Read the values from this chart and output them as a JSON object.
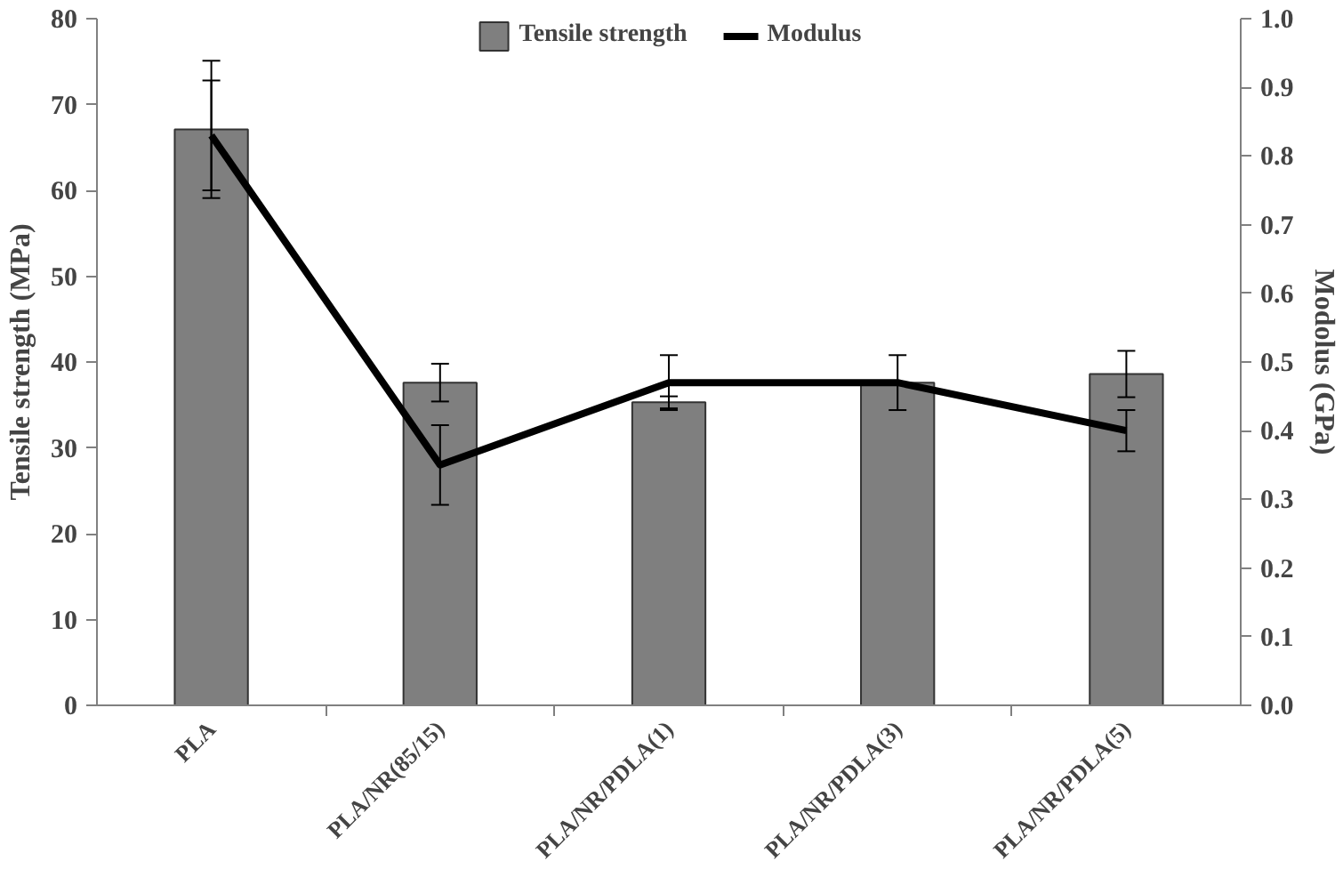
{
  "chart_data": {
    "type": "bar",
    "categories": [
      "PLA",
      "PLA/NR(85/15)",
      "PLA/NR/PDLA(1)",
      "PLA/NR/PDLA(3)",
      "PLA/NR/PDLA(5)"
    ],
    "ylabel": "Tensile strength (MPa)",
    "y2label": "Modolus (GPa)",
    "ylim": [
      0,
      80
    ],
    "yticks": [
      0,
      10,
      20,
      30,
      40,
      50,
      60,
      70,
      80
    ],
    "y2lim": [
      0,
      1.0
    ],
    "y2ticks": [
      {
        "value": 0,
        "label": "0.0"
      },
      {
        "value": 0.1,
        "label": "0.1"
      },
      {
        "value": 0.2,
        "label": "0.2"
      },
      {
        "value": 0.3,
        "label": "0.3"
      },
      {
        "value": 0.4,
        "label": "0.4"
      },
      {
        "value": 0.5,
        "label": "0.5"
      },
      {
        "value": 0.6,
        "label": "0.6"
      },
      {
        "value": 0.7,
        "label": "0.7"
      },
      {
        "value": 0.8,
        "label": "0.8"
      },
      {
        "value": 0.9,
        "label": "0.9"
      },
      {
        "value": 1.0,
        "label": "1.0"
      }
    ],
    "legend": "top",
    "grid": false,
    "series": [
      {
        "name": "Tensile strength",
        "color": "#7f7f7f",
        "values": [
          67.1,
          37.6,
          35.3,
          37.6,
          38.6
        ],
        "errors": [
          8,
          2.2,
          0.7,
          null,
          2.7
        ]
      },
      {
        "name": "Modulus",
        "type": "line",
        "axis": "y2",
        "color": "#000000",
        "marker": "none",
        "values": [
          0.83,
          0.35,
          0.47,
          0.47,
          0.4
        ],
        "errors": [
          0.08,
          0.058,
          0.04,
          0.04,
          0.03
        ]
      }
    ]
  }
}
